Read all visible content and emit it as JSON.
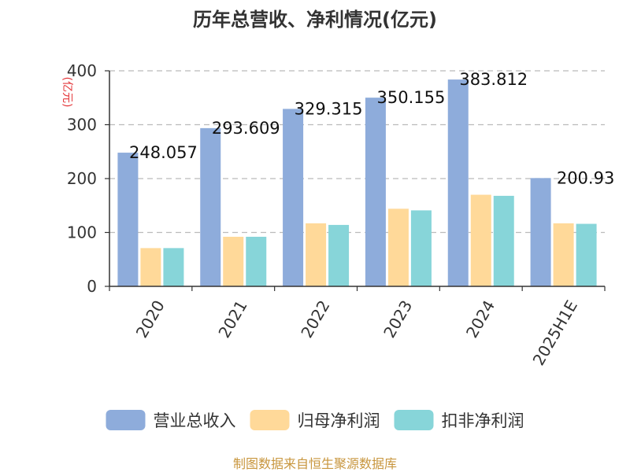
{
  "chart_data": {
    "type": "bar",
    "title": "历年总营收、净利情况(亿元)",
    "unit_label": "(亿元)",
    "categories": [
      "2020",
      "2021",
      "2022",
      "2023",
      "2024",
      "2025H1E"
    ],
    "series": [
      {
        "name": "营业总收入",
        "color": "#8eacdb",
        "values": [
          248.057,
          293.609,
          329.315,
          350.155,
          383.812,
          200.93
        ]
      },
      {
        "name": "归母净利润",
        "color": "#ffd999",
        "values": [
          71,
          92,
          117,
          144,
          170,
          117
        ]
      },
      {
        "name": "扣非净利润",
        "color": "#87d5d9",
        "values": [
          71,
          92,
          114,
          141,
          168,
          116
        ]
      }
    ],
    "data_labels": [
      "248.057",
      "293.609",
      "329.315",
      "350.155",
      "383.812",
      "200.93"
    ],
    "yticks": [
      0,
      100,
      200,
      300,
      400
    ],
    "ylim": [
      0,
      400
    ],
    "grid": true,
    "legend_position": "bottom"
  },
  "source_text": "制图数据来自恒生聚源数据库"
}
